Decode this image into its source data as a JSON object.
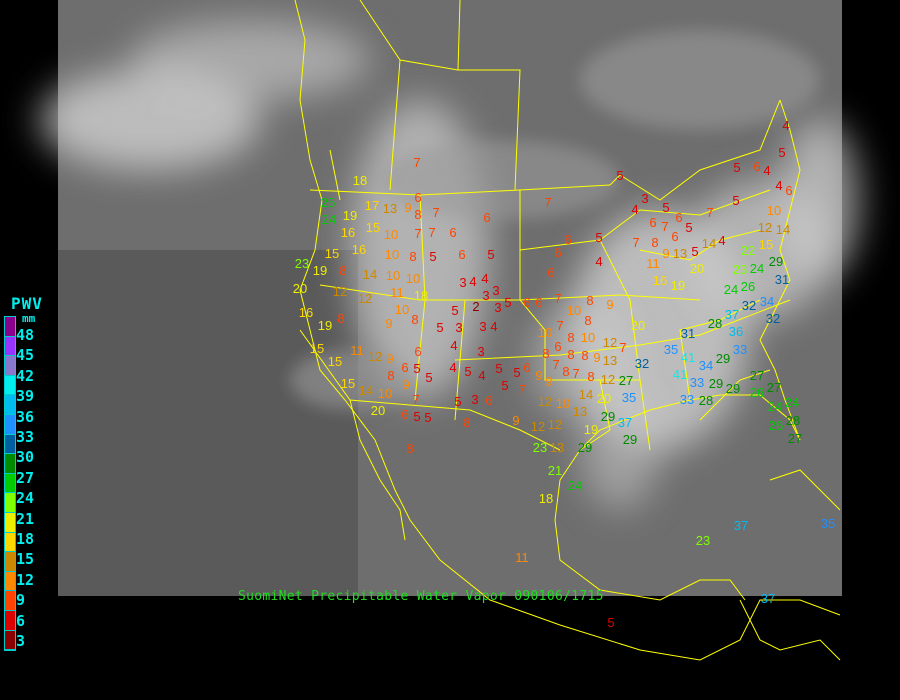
{
  "caption": "SuomiNet Precipitable Water Vapor 090106/1715",
  "legend": {
    "title": "PWV",
    "unit": "mm",
    "labels": [
      "48",
      "45",
      "42",
      "39",
      "36",
      "33",
      "30",
      "27",
      "24",
      "21",
      "18",
      "15",
      "12",
      "9",
      "6",
      "3"
    ],
    "colors": [
      "#8b008b",
      "#9933ff",
      "#8877cc",
      "#00eeee",
      "#00bbee",
      "#1e90ff",
      "#005f9f",
      "#008b00",
      "#00cc00",
      "#7fff00",
      "#eeee00",
      "#ffd700",
      "#cc8800",
      "#ff8800",
      "#ff4400",
      "#dd0000",
      "#8b0000"
    ]
  },
  "map": {
    "background": "infrared satellite, grayscale",
    "boundary_color": "#ffff00"
  },
  "stations": [
    7,
    18,
    25,
    24,
    17,
    13,
    6,
    9,
    8,
    7,
    19,
    16,
    15,
    10,
    7,
    7,
    6,
    6,
    16,
    15,
    10,
    8,
    5,
    6,
    5,
    23,
    19,
    8,
    14,
    10,
    10,
    18,
    11,
    3,
    4,
    4,
    3,
    3,
    20,
    12,
    12,
    2,
    3,
    5,
    6,
    16,
    19,
    8,
    10,
    8,
    9,
    5,
    5,
    3,
    3,
    4,
    4,
    3,
    6,
    15,
    15,
    11,
    12,
    9,
    8,
    6,
    5,
    5,
    9,
    4,
    5,
    4,
    5,
    5,
    5,
    6,
    9,
    7,
    15,
    14,
    10,
    20,
    6,
    5,
    7,
    5,
    3,
    6,
    5,
    8,
    9,
    12,
    5,
    5,
    6,
    4,
    4,
    6,
    5,
    7,
    3,
    4,
    5,
    6,
    6,
    7,
    6,
    5,
    8,
    9,
    11,
    13,
    5,
    14,
    4,
    7,
    10,
    12,
    14,
    15,
    6,
    5,
    6,
    4,
    7,
    20,
    16,
    19,
    22,
    24,
    29,
    31,
    23,
    26,
    24,
    6,
    6,
    7,
    8,
    9,
    32,
    34,
    37,
    32,
    10,
    8,
    7,
    10,
    8,
    10,
    20,
    28,
    36,
    31,
    33,
    6,
    8,
    8,
    9,
    12,
    7,
    35,
    8,
    7,
    8,
    7,
    8,
    13,
    12,
    32,
    29,
    41,
    41,
    34,
    33,
    29,
    27,
    9,
    14,
    27,
    20,
    35,
    29,
    33,
    28,
    29,
    26,
    27,
    24,
    24,
    28,
    26,
    27,
    12,
    12,
    10,
    13,
    19,
    37,
    29,
    23,
    13,
    21,
    18,
    11,
    29,
    24,
    23,
    37,
    35,
    5,
    37,
    8,
    4,
    5
  ]
}
